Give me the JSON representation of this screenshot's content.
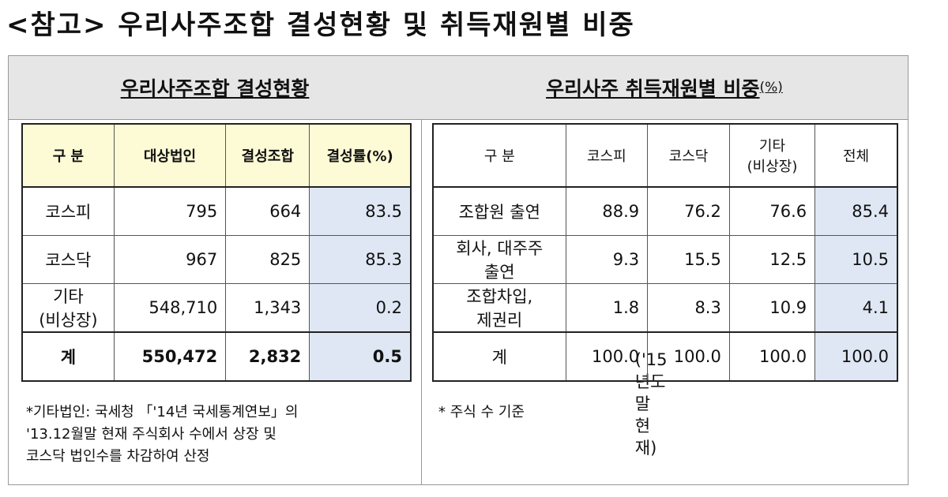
{
  "title": "<참고> 우리사주조합 결성현황 및 취득재원별 비중",
  "title_note": "('15년도말 현재)",
  "left": {
    "heading": "우리사주조합 결성현황",
    "table": {
      "header": [
        "구  분",
        "대상법인",
        "결성조합",
        "결성률(%)"
      ],
      "rows": [
        [
          "코스피",
          "795",
          "664",
          "83.5"
        ],
        [
          "코스닥",
          "967",
          "825",
          "85.3"
        ],
        [
          "기타\n(비상장)",
          "548,710",
          "1,343",
          "0.2"
        ],
        [
          "계",
          "550,472",
          "2,832",
          "0.5"
        ]
      ]
    },
    "note": "*기타법인: 국세청 「'14년 국세통계연보」의\n'13.12월말 현재 주식회사 수에서 상장 및\n코스닥 법인수를 차감하여 산정"
  },
  "right": {
    "heading": "우리사주 취득재원별 비중",
    "heading_unit": "(%)",
    "table": {
      "header": [
        "구  분",
        "코스피",
        "코스닥",
        "기타\n(비상장)",
        "전체"
      ],
      "rows": [
        [
          "조합원 출연",
          "88.9",
          "76.2",
          "76.6",
          "85.4"
        ],
        [
          "회사, 대주주\n출연",
          "9.3",
          "15.5",
          "12.5",
          "10.5"
        ],
        [
          "조합차입,\n제권리",
          "1.8",
          "8.3",
          "10.9",
          "4.1"
        ],
        [
          "계",
          "100.0",
          "100.0",
          "100.0",
          "100.0"
        ]
      ]
    },
    "note": "* 주식 수 기준"
  }
}
